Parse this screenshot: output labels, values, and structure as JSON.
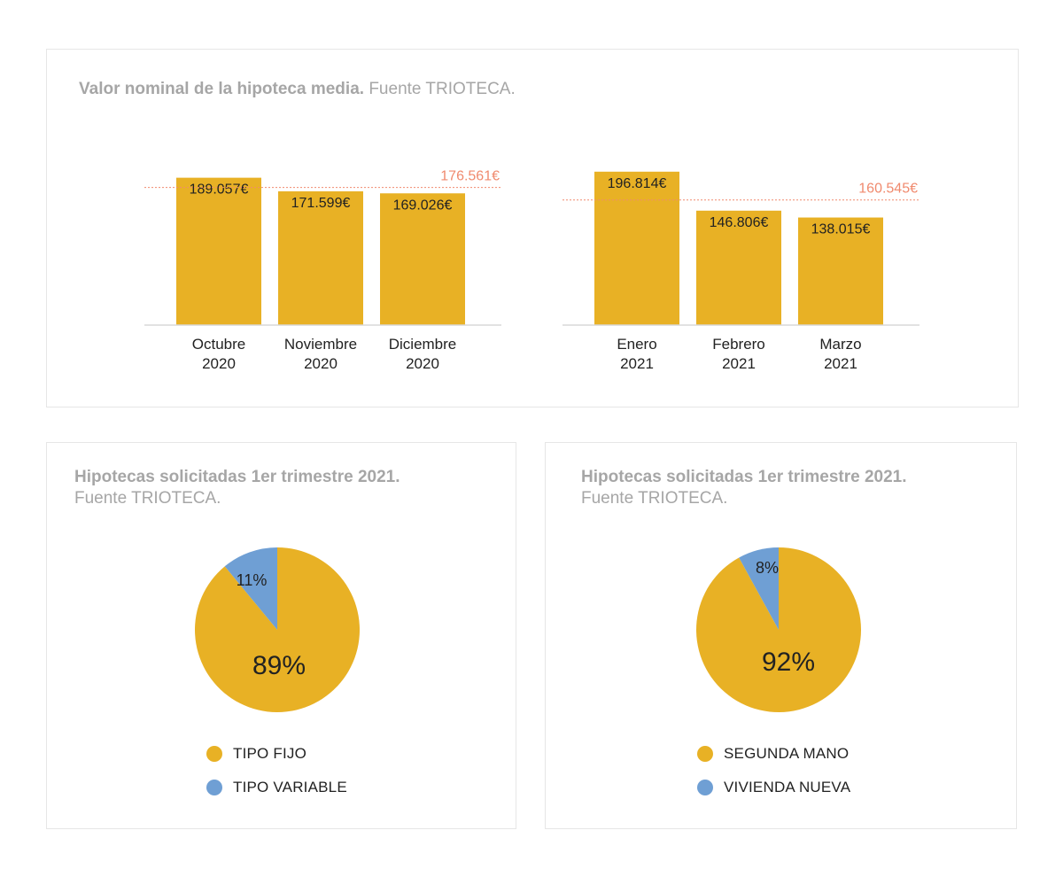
{
  "colors": {
    "bar": "#e8b125",
    "blue": "#6f9fd4",
    "ref": "#f08a6e",
    "axis": "#d8d8d8"
  },
  "top_panel": {
    "title_bold": "Valor nominal de la hipoteca media.",
    "title_light": "Fuente TRIOTECA."
  },
  "left_panel": {
    "title_bold": "Hipotecas solicitadas 1er trimestre 2021.",
    "title_light": "Fuente TRIOTECA.",
    "legend": [
      "TIPO FIJO",
      "TIPO VARIABLE"
    ]
  },
  "right_panel": {
    "title_bold": "Hipotecas solicitadas 1er trimestre 2021.",
    "title_light": "Fuente TRIOTECA.",
    "legend": [
      "SEGUNDA MANO",
      "VIVIENDA NUEVA"
    ]
  },
  "chart_data": [
    {
      "type": "bar",
      "categories": [
        [
          "Octubre",
          "2020"
        ],
        [
          "Noviembre",
          "2020"
        ],
        [
          "Diciembre",
          "2020"
        ]
      ],
      "values": [
        189057,
        171599,
        169026
      ],
      "value_labels": [
        "189.057€",
        "171.599€",
        "169.026€"
      ],
      "reference_line": {
        "value": 176561,
        "label": "176.561€"
      }
    },
    {
      "type": "bar",
      "categories": [
        [
          "Enero",
          "2021"
        ],
        [
          "Febrero",
          "2021"
        ],
        [
          "Marzo",
          "2021"
        ]
      ],
      "values": [
        196814,
        146806,
        138015
      ],
      "value_labels": [
        "196.814€",
        "146.806€",
        "138.015€"
      ],
      "reference_line": {
        "value": 160545,
        "label": "160.545€"
      }
    },
    {
      "type": "pie",
      "slices": [
        {
          "name": "TIPO FIJO",
          "value": 89,
          "label": "89%",
          "color": "#e8b125"
        },
        {
          "name": "TIPO VARIABLE",
          "value": 11,
          "label": "11%",
          "color": "#6f9fd4"
        }
      ]
    },
    {
      "type": "pie",
      "slices": [
        {
          "name": "SEGUNDA MANO",
          "value": 92,
          "label": "92%",
          "color": "#e8b125"
        },
        {
          "name": "VIVIENDA NUEVA",
          "value": 8,
          "label": "8%",
          "color": "#6f9fd4"
        }
      ]
    }
  ]
}
